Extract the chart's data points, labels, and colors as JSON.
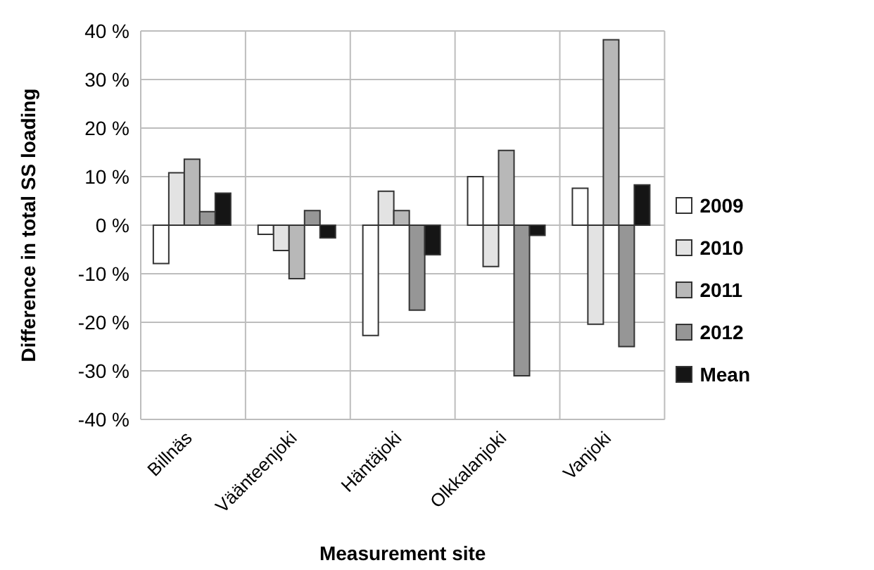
{
  "chart_data": {
    "type": "bar",
    "xlabel": "Measurement site",
    "ylabel": "Difference in total SS loading",
    "categories": [
      "Billnäs",
      "Väänteenjoki",
      "Häntäjoki",
      "Olkkalanjoki",
      "Vanjoki"
    ],
    "series": [
      {
        "name": "2009",
        "color": "#ffffff",
        "values": [
          -7.9,
          -1.9,
          -22.7,
          10,
          7.6
        ]
      },
      {
        "name": "2010",
        "color": "#e3e3e3",
        "values": [
          10.8,
          -5.2,
          7,
          -8.5,
          -20.4
        ]
      },
      {
        "name": "2011",
        "color": "#b8b8b8",
        "values": [
          13.6,
          -11,
          3,
          15.4,
          38.2
        ]
      },
      {
        "name": "2012",
        "color": "#969696",
        "values": [
          2.8,
          3,
          -17.5,
          -31,
          -25
        ]
      },
      {
        "name": "Mean",
        "color": "#151515",
        "values": [
          6.6,
          -2.6,
          -6.1,
          -2.1,
          8.3
        ]
      }
    ],
    "ylim": [
      -40,
      40
    ],
    "yticks": [
      {
        "value": -40,
        "label": "-40 %"
      },
      {
        "value": -30,
        "label": "-30 %"
      },
      {
        "value": -20,
        "label": "-20 %"
      },
      {
        "value": -10,
        "label": "-10 %"
      },
      {
        "value": 0,
        "label": "0 %"
      },
      {
        "value": 10,
        "label": "10 %"
      },
      {
        "value": 20,
        "label": "20 %"
      },
      {
        "value": 30,
        "label": "30 %"
      },
      {
        "value": 40,
        "label": "40 %"
      }
    ],
    "grid": true,
    "legend": "right"
  }
}
